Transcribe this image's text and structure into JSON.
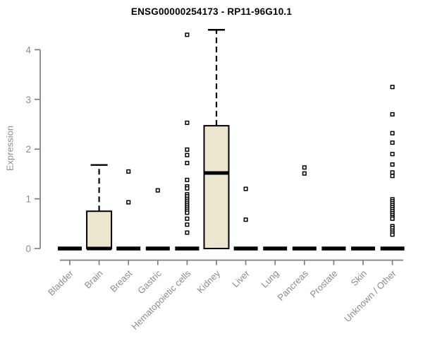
{
  "window": {
    "background": "#ffffff"
  },
  "chart_data": {
    "type": "boxplot",
    "title": "ENSG00000254173 - RP11-96G10.1",
    "xlabel": "",
    "ylabel": "Expression",
    "ylim": [
      0,
      4.5
    ],
    "yticks": [
      0,
      1,
      2,
      3,
      4
    ],
    "grid": false,
    "legend": null,
    "categories": [
      "Bladder",
      "Brain",
      "Breast",
      "Gastric",
      "Hematopoietic cells",
      "Kidney",
      "Liver",
      "Lung",
      "Pancreas",
      "Prostate",
      "Skin",
      "Unknown / Other"
    ],
    "boxes": [
      {
        "category": "Bladder",
        "low": 0,
        "q1": 0,
        "median": 0,
        "q3": 0,
        "high": 0,
        "outliers": []
      },
      {
        "category": "Brain",
        "low": 0,
        "q1": 0,
        "median": 0,
        "q3": 0.75,
        "high": 1.68,
        "outliers": []
      },
      {
        "category": "Breast",
        "low": 0,
        "q1": 0,
        "median": 0,
        "q3": 0,
        "high": 0,
        "outliers": [
          1.55,
          0.93
        ]
      },
      {
        "category": "Gastric",
        "low": 0,
        "q1": 0,
        "median": 0,
        "q3": 0,
        "high": 0,
        "outliers": [
          1.17
        ]
      },
      {
        "category": "Hematopoietic cells",
        "low": 0,
        "q1": 0,
        "median": 0,
        "q3": 0,
        "high": 0,
        "outliers": [
          4.3,
          2.53,
          1.99,
          1.88,
          1.72,
          1.38,
          1.25,
          1.21,
          1.09,
          1.05,
          1.0,
          0.96,
          0.92,
          0.88,
          0.84,
          0.8,
          0.76,
          0.72,
          0.6,
          0.48,
          0.32
        ]
      },
      {
        "category": "Kidney",
        "low": 0,
        "q1": 0,
        "median": 1.52,
        "q3": 2.47,
        "high": 4.4,
        "outliers": []
      },
      {
        "category": "Liver",
        "low": 0,
        "q1": 0,
        "median": 0,
        "q3": 0,
        "high": 0,
        "outliers": [
          1.2,
          0.58
        ]
      },
      {
        "category": "Lung",
        "low": 0,
        "q1": 0,
        "median": 0,
        "q3": 0,
        "high": 0,
        "outliers": []
      },
      {
        "category": "Pancreas",
        "low": 0,
        "q1": 0,
        "median": 0,
        "q3": 0,
        "high": 0,
        "outliers": [
          1.63,
          1.51
        ]
      },
      {
        "category": "Prostate",
        "low": 0,
        "q1": 0,
        "median": 0,
        "q3": 0,
        "high": 0,
        "outliers": []
      },
      {
        "category": "Skin",
        "low": 0,
        "q1": 0,
        "median": 0,
        "q3": 0,
        "high": 0,
        "outliers": []
      },
      {
        "category": "Unknown / Other",
        "low": 0,
        "q1": 0,
        "median": 0,
        "q3": 0,
        "high": 0,
        "outliers": [
          3.25,
          2.7,
          2.32,
          2.13,
          1.9,
          1.69,
          1.53,
          1.46,
          0.99,
          0.95,
          0.91,
          0.87,
          0.83,
          0.79,
          0.75,
          0.71,
          0.67,
          0.63,
          0.6,
          0.45,
          0.41,
          0.36,
          0.32,
          0.28
        ]
      }
    ],
    "colors": {
      "box_fill": "#ece6cf",
      "box_border": "#000000",
      "median": "#000000",
      "whisker": "#000000",
      "outlier_border": "#000000",
      "outlier_fill": "#ffffff",
      "axis": "#7f7f7f",
      "tick_label": "#8c8c8c",
      "title": "#000000"
    }
  }
}
